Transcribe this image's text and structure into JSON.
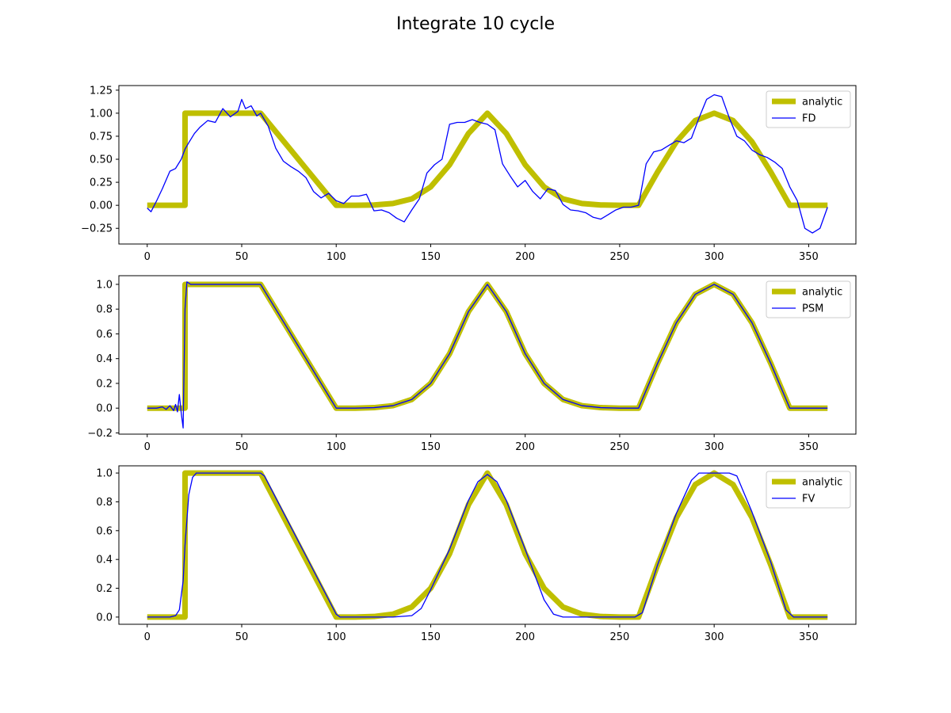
{
  "title": "Integrate 10 cycle",
  "colors": {
    "analytic": "#bfbf00",
    "numeric": "#0000ff",
    "frame": "#000000"
  },
  "chart_data": [
    {
      "type": "line",
      "xlim": [
        -15,
        375
      ],
      "ylim": [
        -0.42,
        1.3
      ],
      "xticks": [
        0,
        50,
        100,
        150,
        200,
        250,
        300,
        350
      ],
      "yticks": [
        -0.25,
        0.0,
        0.25,
        0.5,
        0.75,
        1.0,
        1.25
      ],
      "ytick_labels": [
        "−0.25",
        "0.00",
        "0.25",
        "0.50",
        "0.75",
        "1.00",
        "1.25"
      ],
      "grid": false,
      "legend_position": "top-right",
      "series": [
        {
          "name": "analytic",
          "x": [
            0,
            20,
            20.01,
            60,
            100,
            110,
            120,
            130,
            140,
            150,
            160,
            170,
            180,
            190,
            200,
            210,
            220,
            230,
            240,
            250,
            260,
            270,
            280,
            290,
            300,
            310,
            320,
            330,
            340,
            360
          ],
          "y": [
            0,
            0,
            1,
            1,
            0,
            0,
            0.004,
            0.02,
            0.07,
            0.2,
            0.44,
            0.78,
            1.0,
            0.78,
            0.44,
            0.2,
            0.07,
            0.02,
            0.004,
            0,
            0,
            0.36,
            0.69,
            0.92,
            1.0,
            0.92,
            0.69,
            0.36,
            0,
            0
          ]
        },
        {
          "name": "FD",
          "x": [
            0,
            2,
            5,
            8,
            12,
            15,
            18,
            20,
            22,
            25,
            28,
            32,
            36,
            40,
            44,
            48,
            50,
            52,
            55,
            58,
            60,
            64,
            68,
            72,
            76,
            80,
            84,
            88,
            92,
            96,
            100,
            104,
            108,
            112,
            116,
            120,
            124,
            128,
            132,
            136,
            140,
            144,
            148,
            152,
            156,
            160,
            164,
            168,
            172,
            176,
            180,
            184,
            188,
            192,
            196,
            200,
            204,
            208,
            212,
            216,
            220,
            224,
            228,
            232,
            236,
            240,
            244,
            248,
            252,
            256,
            260,
            264,
            268,
            272,
            276,
            280,
            284,
            288,
            292,
            296,
            300,
            304,
            308,
            312,
            316,
            320,
            324,
            328,
            332,
            336,
            340,
            344,
            348,
            352,
            356,
            360
          ],
          "y": [
            -0.03,
            -0.07,
            0.05,
            0.18,
            0.37,
            0.4,
            0.5,
            0.61,
            0.68,
            0.78,
            0.85,
            0.92,
            0.9,
            1.05,
            0.96,
            1.02,
            1.15,
            1.05,
            1.08,
            0.97,
            1.0,
            0.86,
            0.62,
            0.48,
            0.42,
            0.37,
            0.3,
            0.15,
            0.08,
            0.13,
            0.05,
            0.02,
            0.1,
            0.1,
            0.12,
            -0.06,
            -0.05,
            -0.08,
            -0.14,
            -0.18,
            -0.05,
            0.07,
            0.35,
            0.44,
            0.5,
            0.88,
            0.9,
            0.9,
            0.93,
            0.9,
            0.88,
            0.82,
            0.45,
            0.32,
            0.2,
            0.27,
            0.15,
            0.07,
            0.18,
            0.16,
            0.01,
            -0.05,
            -0.06,
            -0.08,
            -0.13,
            -0.15,
            -0.1,
            -0.05,
            -0.02,
            -0.02,
            0.0,
            0.45,
            0.58,
            0.6,
            0.65,
            0.7,
            0.68,
            0.73,
            0.95,
            1.15,
            1.2,
            1.18,
            0.95,
            0.75,
            0.7,
            0.6,
            0.55,
            0.52,
            0.47,
            0.4,
            0.2,
            0.05,
            -0.25,
            -0.3,
            -0.25,
            -0.02
          ]
        }
      ]
    },
    {
      "type": "line",
      "xlim": [
        -15,
        375
      ],
      "ylim": [
        -0.21,
        1.07
      ],
      "xticks": [
        0,
        50,
        100,
        150,
        200,
        250,
        300,
        350
      ],
      "yticks": [
        -0.2,
        0.0,
        0.2,
        0.4,
        0.6,
        0.8,
        1.0
      ],
      "ytick_labels": [
        "−0.2",
        "0.0",
        "0.2",
        "0.4",
        "0.6",
        "0.8",
        "1.0"
      ],
      "grid": false,
      "legend_position": "top-right",
      "series": [
        {
          "name": "analytic",
          "x": [
            0,
            20,
            20.01,
            60,
            100,
            110,
            120,
            130,
            140,
            150,
            160,
            170,
            180,
            190,
            200,
            210,
            220,
            230,
            240,
            250,
            260,
            270,
            280,
            290,
            300,
            310,
            320,
            330,
            340,
            360
          ],
          "y": [
            0,
            0,
            1,
            1,
            0,
            0,
            0.004,
            0.02,
            0.07,
            0.2,
            0.44,
            0.78,
            1.0,
            0.78,
            0.44,
            0.2,
            0.07,
            0.02,
            0.004,
            0,
            0,
            0.36,
            0.69,
            0.92,
            1.0,
            0.92,
            0.69,
            0.36,
            0,
            0
          ]
        },
        {
          "name": "PSM",
          "x": [
            0,
            5,
            8,
            10,
            12,
            14,
            15,
            16,
            17,
            18,
            19,
            20,
            21,
            22,
            23,
            25,
            60,
            100,
            110,
            120,
            130,
            140,
            150,
            160,
            170,
            180,
            190,
            200,
            210,
            220,
            230,
            240,
            250,
            260,
            270,
            280,
            290,
            300,
            310,
            320,
            330,
            340,
            360
          ],
          "y": [
            0,
            0,
            0.01,
            -0.01,
            0.02,
            -0.02,
            0.03,
            -0.03,
            0.11,
            -0.04,
            -0.16,
            0.8,
            1.02,
            1.01,
            1.0,
            1.0,
            1.0,
            0,
            0,
            0.004,
            0.02,
            0.07,
            0.2,
            0.44,
            0.78,
            1.0,
            0.78,
            0.44,
            0.2,
            0.07,
            0.02,
            0.004,
            0,
            0,
            0.36,
            0.69,
            0.92,
            1.0,
            0.92,
            0.69,
            0.36,
            0,
            0
          ]
        }
      ]
    },
    {
      "type": "line",
      "xlim": [
        -15,
        375
      ],
      "ylim": [
        -0.05,
        1.05
      ],
      "xticks": [
        0,
        50,
        100,
        150,
        200,
        250,
        300,
        350
      ],
      "yticks": [
        0.0,
        0.2,
        0.4,
        0.6,
        0.8,
        1.0
      ],
      "ytick_labels": [
        "0.0",
        "0.2",
        "0.4",
        "0.6",
        "0.8",
        "1.0"
      ],
      "grid": false,
      "legend_position": "top-right",
      "series": [
        {
          "name": "analytic",
          "x": [
            0,
            20,
            20.01,
            60,
            100,
            110,
            120,
            130,
            140,
            150,
            160,
            170,
            180,
            190,
            200,
            210,
            220,
            230,
            240,
            250,
            260,
            270,
            280,
            290,
            300,
            310,
            320,
            330,
            340,
            360
          ],
          "y": [
            0,
            0,
            1,
            1,
            0,
            0,
            0.004,
            0.02,
            0.07,
            0.2,
            0.44,
            0.78,
            1.0,
            0.78,
            0.44,
            0.2,
            0.07,
            0.02,
            0.004,
            0,
            0,
            0.36,
            0.69,
            0.92,
            1.0,
            0.92,
            0.69,
            0.36,
            0,
            0
          ]
        },
        {
          "name": "FV",
          "x": [
            0,
            12,
            15,
            17,
            19,
            20,
            22,
            24,
            26,
            60,
            62,
            100,
            102,
            130,
            140,
            145,
            150,
            160,
            170,
            175,
            180,
            185,
            190,
            200,
            210,
            215,
            220,
            230,
            258,
            262,
            270,
            280,
            288,
            292,
            300,
            308,
            312,
            320,
            330,
            338,
            342,
            360
          ],
          "y": [
            0,
            0,
            0.01,
            0.05,
            0.25,
            0.5,
            0.85,
            0.97,
            1.0,
            1.0,
            0.98,
            0.02,
            0.0,
            0.0,
            0.01,
            0.06,
            0.19,
            0.47,
            0.81,
            0.94,
            0.99,
            0.94,
            0.81,
            0.47,
            0.12,
            0.02,
            0.0,
            0.0,
            0.0,
            0.03,
            0.36,
            0.72,
            0.95,
            1.0,
            1.0,
            1.0,
            0.98,
            0.73,
            0.38,
            0.05,
            0.0,
            0
          ]
        }
      ]
    }
  ]
}
